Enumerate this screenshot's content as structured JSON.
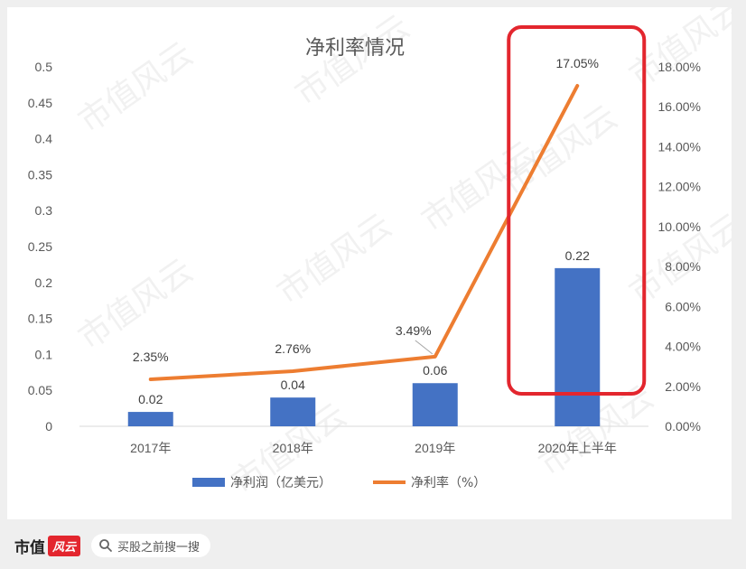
{
  "chart_data": {
    "type": "bar+line",
    "title": "净利率情况",
    "categories": [
      "2017年",
      "2018年",
      "2019年",
      "2020年上半年"
    ],
    "series": [
      {
        "name": "净利润（亿美元）",
        "type": "bar",
        "axis": "left",
        "color": "#4472c4",
        "values": [
          0.02,
          0.04,
          0.06,
          0.22
        ],
        "labels": [
          "0.02",
          "0.04",
          "0.06",
          "0.22"
        ]
      },
      {
        "name": "净利率（%）",
        "type": "line",
        "axis": "right",
        "color": "#ed7d31",
        "values": [
          2.35,
          2.76,
          3.49,
          17.05
        ],
        "labels": [
          "2.35%",
          "2.76%",
          "3.49%",
          "17.05%"
        ]
      }
    ],
    "y_left": {
      "range": [
        0,
        0.5
      ],
      "ticks": [
        0,
        0.05,
        0.1,
        0.15,
        0.2,
        0.25,
        0.3,
        0.35,
        0.4,
        0.45,
        0.5
      ],
      "tick_labels": [
        "0",
        "0.05",
        "0.1",
        "0.15",
        "0.2",
        "0.25",
        "0.3",
        "0.35",
        "0.4",
        "0.45",
        "0.5"
      ]
    },
    "y_right": {
      "range": [
        0,
        18
      ],
      "ticks": [
        0,
        2,
        4,
        6,
        8,
        10,
        12,
        14,
        16,
        18
      ],
      "tick_labels": [
        "0.00%",
        "2.00%",
        "4.00%",
        "6.00%",
        "8.00%",
        "10.00%",
        "12.00%",
        "14.00%",
        "16.00%",
        "18.00%"
      ]
    },
    "grid": false,
    "legend_position": "bottom",
    "highlight": {
      "category_index": 3,
      "color": "#e3262e",
      "style": "rounded-rectangle"
    }
  },
  "watermark": "市值风云",
  "footer": {
    "brand_name": "市值",
    "brand_mark": "风云",
    "search_text": "买股之前搜一搜",
    "search_icon": "search-icon"
  }
}
